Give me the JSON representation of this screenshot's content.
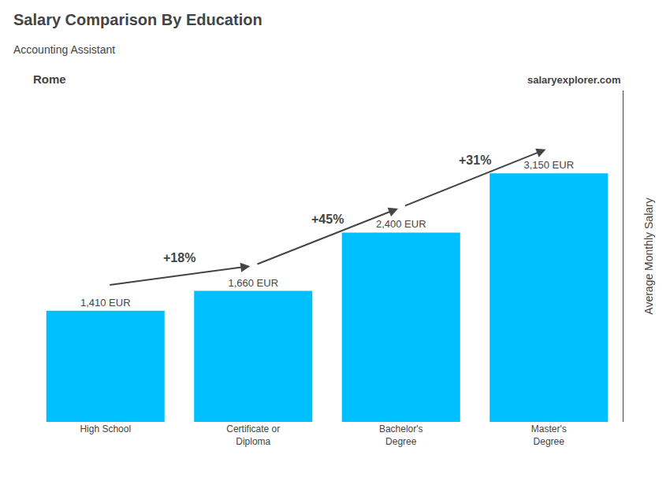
{
  "chart_data": {
    "type": "bar",
    "title": "Salary Comparison By Education",
    "subtitle": "Accounting Assistant",
    "ylabel": "Average Monthly Salary",
    "categories": [
      "High School",
      "Certificate or\nDiploma",
      "Bachelor's\nDegree",
      "Master's\nDegree"
    ],
    "values": [
      1410,
      1660,
      2400,
      3150
    ],
    "value_labels": [
      "1,410 EUR",
      "1,660 EUR",
      "2,400 EUR",
      "3,150 EUR"
    ],
    "data_labels": true,
    "color": "#00BFFF",
    "ylim": [
      0,
      4200
    ],
    "grid": false,
    "tick_labels": "x",
    "annotations": [
      {
        "text": "Rome"
      },
      {
        "text": "salaryexplorer.com"
      },
      {
        "text": "+18%",
        "from": "High School",
        "to": "Certificate or\nDiploma"
      },
      {
        "text": "+45%",
        "from": "Certificate or\nDiploma",
        "to": "Bachelor's\nDegree"
      },
      {
        "text": "+31%",
        "from": "Bachelor's\nDegree",
        "to": "Master's\nDegree"
      }
    ]
  }
}
